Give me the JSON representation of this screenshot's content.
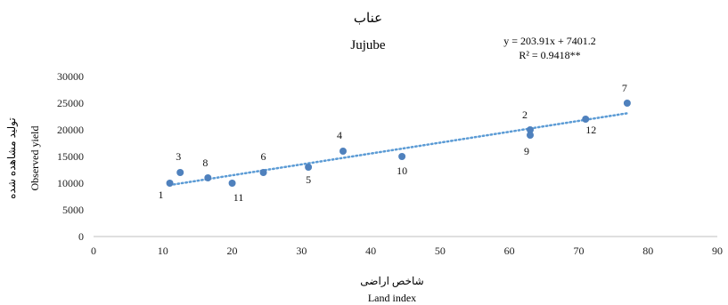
{
  "chart_data": {
    "type": "scatter",
    "title_fa": "عناب",
    "title": "Jujube",
    "trendline": {
      "equation": "y = 203.91x + 7401.2",
      "r2": "R² = 0.9418**",
      "slope": 203.91,
      "intercept": 7401.2,
      "x_range": [
        11,
        77
      ],
      "style": "dotted",
      "color": "#5b9bd5"
    },
    "xlabel_fa": "شاخص اراضی",
    "xlabel": "Land index",
    "ylabel_fa": "تولید مشاهده شده",
    "ylabel": "Observed yield",
    "xlim": [
      0,
      90
    ],
    "ylim": [
      0,
      30000
    ],
    "xticks": [
      "0",
      "10",
      "20",
      "30",
      "40",
      "50",
      "60",
      "70",
      "80",
      "90"
    ],
    "yticks": [
      "0",
      "5000",
      "10000",
      "15000",
      "20000",
      "25000",
      "30000"
    ],
    "grid": false,
    "marker_color": "#4f81bd",
    "points": [
      {
        "label": "1",
        "x": 11,
        "y": 10000
      },
      {
        "label": "3",
        "x": 12.5,
        "y": 12000
      },
      {
        "label": "8",
        "x": 16.5,
        "y": 11000
      },
      {
        "label": "11",
        "x": 20,
        "y": 10000
      },
      {
        "label": "6",
        "x": 24.5,
        "y": 12000
      },
      {
        "label": "5",
        "x": 31,
        "y": 13000
      },
      {
        "label": "4",
        "x": 36,
        "y": 16000
      },
      {
        "label": "10",
        "x": 44.5,
        "y": 15000
      },
      {
        "label": "2",
        "x": 63,
        "y": 20000
      },
      {
        "label": "9",
        "x": 63,
        "y": 19000
      },
      {
        "label": "12",
        "x": 71,
        "y": 22000
      },
      {
        "label": "7",
        "x": 77,
        "y": 25000
      }
    ]
  }
}
